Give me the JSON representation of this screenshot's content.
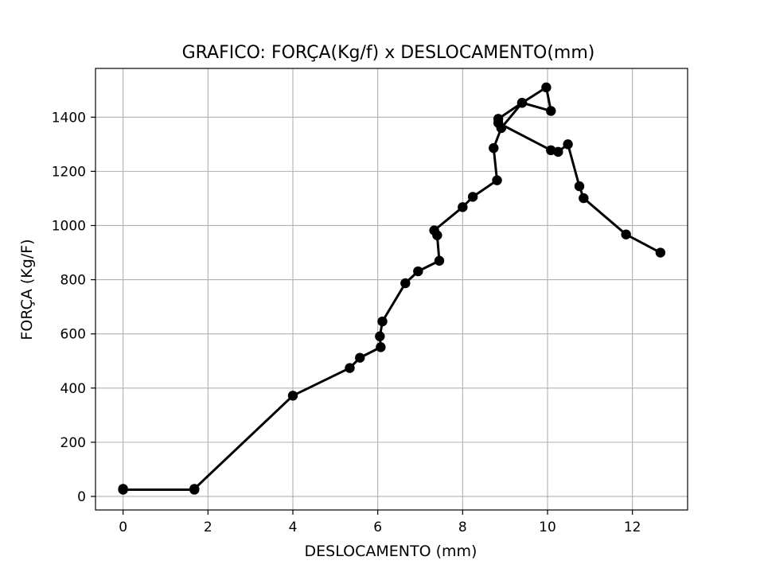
{
  "chart_data": {
    "type": "line",
    "title": "GRAFICO: FORÇA(Kg/f) x DESLOCAMENTO(mm)",
    "xlabel": "DESLOCAMENTO (mm)",
    "ylabel": "FORÇA (Kg/F)",
    "xlim": [
      -0.65,
      13.3
    ],
    "ylim": [
      -50,
      1580
    ],
    "xticks": [
      0,
      2,
      4,
      6,
      8,
      10,
      12
    ],
    "yticks": [
      0,
      200,
      400,
      600,
      800,
      1000,
      1200,
      1400
    ],
    "grid": true,
    "legend": "none",
    "series": [
      {
        "color": "#000000",
        "marker": "circle",
        "points": [
          [
            0.0,
            28
          ],
          [
            0.0,
            25
          ],
          [
            1.68,
            25
          ],
          [
            1.68,
            28
          ],
          [
            4.0,
            372
          ],
          [
            5.34,
            474
          ],
          [
            5.58,
            512
          ],
          [
            6.07,
            551
          ],
          [
            6.05,
            591
          ],
          [
            6.11,
            646
          ],
          [
            6.65,
            787
          ],
          [
            6.95,
            831
          ],
          [
            7.45,
            870
          ],
          [
            7.4,
            964
          ],
          [
            7.33,
            982
          ],
          [
            8.0,
            1068
          ],
          [
            8.24,
            1106
          ],
          [
            8.81,
            1167
          ],
          [
            8.73,
            1286
          ],
          [
            8.91,
            1360
          ],
          [
            8.84,
            1394
          ],
          [
            9.4,
            1453
          ],
          [
            9.97,
            1510
          ],
          [
            10.08,
            1423
          ],
          [
            9.4,
            1453
          ],
          [
            8.91,
            1360
          ],
          [
            8.84,
            1379
          ],
          [
            10.08,
            1278
          ],
          [
            10.25,
            1272
          ],
          [
            10.48,
            1300
          ],
          [
            10.75,
            1145
          ],
          [
            10.85,
            1101
          ],
          [
            11.85,
            967
          ],
          [
            12.66,
            900
          ]
        ]
      }
    ]
  }
}
